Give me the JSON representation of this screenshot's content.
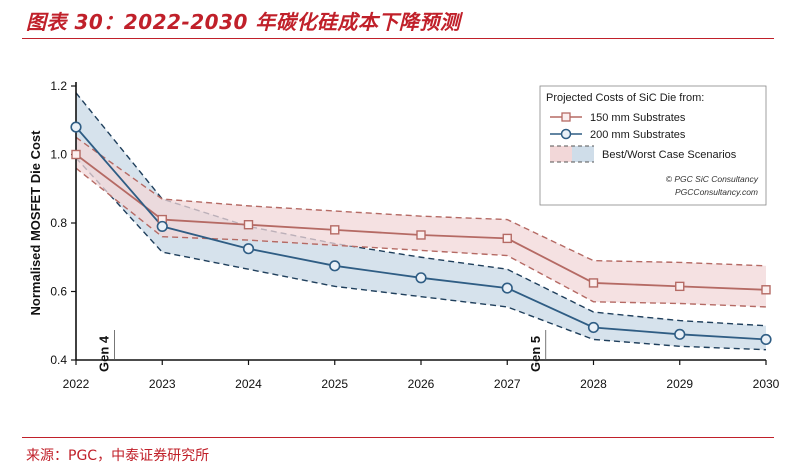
{
  "header": {
    "title": "图表 30：2022-2030 年碳化硅成本下降预测"
  },
  "footer": {
    "source": "来源：PGC，中泰证券研究所"
  },
  "colors": {
    "brand_red": "#c0202a",
    "series_150": "#b56a64",
    "series_200": "#2f5d84",
    "band_150": "#f2d7d8",
    "band_200": "#cfdde9"
  },
  "chart_data": {
    "type": "line",
    "title": "Projected Costs of SiC Die from:",
    "xlabel": "",
    "ylabel": "Normalised MOSFET Die Cost",
    "x": [
      2022,
      2023,
      2024,
      2025,
      2026,
      2027,
      2028,
      2029,
      2030
    ],
    "x_tick_labels": [
      "2022",
      "2023",
      "2024",
      "2025",
      "2026",
      "2027",
      "2028",
      "2029",
      "2030"
    ],
    "ylim": [
      0.4,
      1.2
    ],
    "y_ticks": [
      0.4,
      0.6,
      0.8,
      1.0,
      1.2
    ],
    "y_tick_labels": [
      "0.4",
      "0.6",
      "0.8",
      "1.0",
      "1.2"
    ],
    "series": [
      {
        "name": "150 mm Substrates",
        "marker": "square",
        "values": [
          1.0,
          0.81,
          0.795,
          0.78,
          0.765,
          0.755,
          0.625,
          0.615,
          0.605
        ],
        "best": [
          0.96,
          0.76,
          0.75,
          0.735,
          0.72,
          0.705,
          0.57,
          0.565,
          0.555
        ],
        "worst": [
          1.05,
          0.87,
          0.85,
          0.835,
          0.82,
          0.81,
          0.69,
          0.685,
          0.675
        ]
      },
      {
        "name": "200 mm Substrates",
        "marker": "circle",
        "values": [
          1.08,
          0.79,
          0.725,
          0.675,
          0.64,
          0.61,
          0.495,
          0.475,
          0.46
        ],
        "best": [
          0.99,
          0.715,
          0.665,
          0.615,
          0.585,
          0.555,
          0.46,
          0.44,
          0.43
        ],
        "worst": [
          1.18,
          0.87,
          0.79,
          0.74,
          0.7,
          0.665,
          0.54,
          0.515,
          0.5
        ]
      }
    ],
    "band_label": "Best/Worst Case Scenarios",
    "annotations": [
      {
        "text": "Gen 4",
        "x": 2022.4
      },
      {
        "text": "Gen 5",
        "x": 2027.4
      }
    ],
    "credits": [
      "© PGC SiC Consultancy",
      "PGCConsultancy.com"
    ],
    "legend_position": "top-right",
    "grid": false
  }
}
